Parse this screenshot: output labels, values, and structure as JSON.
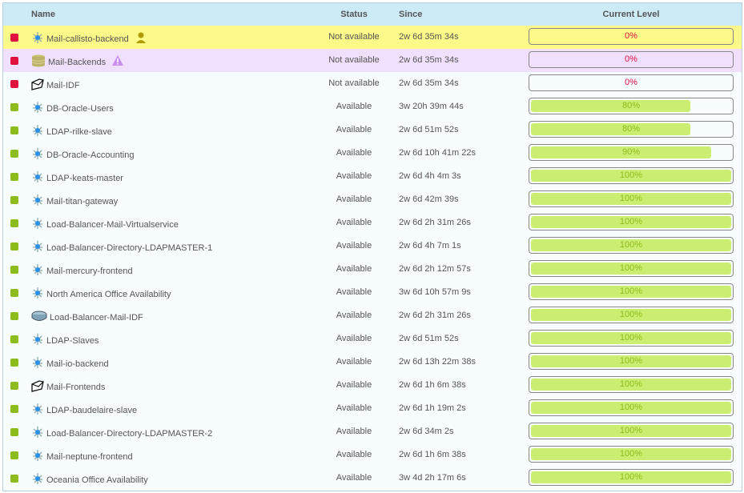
{
  "columns": {
    "name": "Name",
    "status": "Status",
    "since": "Since",
    "level": "Current Level"
  },
  "colors": {
    "down": "#e0103f",
    "up": "#8dbb1b",
    "bar_fill": "#cbee72",
    "pct_down": "#e0103f",
    "pct_up": "#8dbb1b"
  },
  "rows": [
    {
      "name": "Mail-callisto-backend",
      "icon": "service-icon",
      "badge": "user-icon",
      "status": "Not available",
      "since": "2w 6d 35m 34s",
      "level": 0,
      "level_label": "0%",
      "state": "down",
      "highlight": "yellow"
    },
    {
      "name": "Mail-Backends",
      "icon": "database-icon",
      "badge": "warning-icon",
      "status": "Not available",
      "since": "2w 6d 35m 34s",
      "level": 0,
      "level_label": "0%",
      "state": "down",
      "highlight": "purple"
    },
    {
      "name": "Mail-IDF",
      "icon": "envelope-icon",
      "status": "Not available",
      "since": "2w 6d 35m 34s",
      "level": 0,
      "level_label": "0%",
      "state": "down"
    },
    {
      "name": "DB-Oracle-Users",
      "icon": "service-icon",
      "status": "Available",
      "since": "3w 20h 39m 44s",
      "level": 80,
      "level_label": "80%",
      "state": "up"
    },
    {
      "name": "LDAP-rilke-slave",
      "icon": "service-icon",
      "status": "Available",
      "since": "2w 6d 51m 52s",
      "level": 80,
      "level_label": "80%",
      "state": "up"
    },
    {
      "name": "DB-Oracle-Accounting",
      "icon": "service-icon",
      "status": "Available",
      "since": "2w 6d 10h 41m 22s",
      "level": 90,
      "level_label": "90%",
      "state": "up"
    },
    {
      "name": "LDAP-keats-master",
      "icon": "service-icon",
      "status": "Available",
      "since": "2w 6d 4h 4m 3s",
      "level": 100,
      "level_label": "100%",
      "state": "up"
    },
    {
      "name": "Mail-titan-gateway",
      "icon": "service-icon",
      "status": "Available",
      "since": "2w 6d 42m 39s",
      "level": 100,
      "level_label": "100%",
      "state": "up"
    },
    {
      "name": "Load-Balancer-Mail-Virtualservice",
      "icon": "service-icon",
      "status": "Available",
      "since": "2w 6d 2h 31m 26s",
      "level": 100,
      "level_label": "100%",
      "state": "up"
    },
    {
      "name": "Load-Balancer-Directory-LDAPMASTER-1",
      "icon": "service-icon",
      "status": "Available",
      "since": "2w 6d 4h 7m 1s",
      "level": 100,
      "level_label": "100%",
      "state": "up"
    },
    {
      "name": "Mail-mercury-frontend",
      "icon": "service-icon",
      "status": "Available",
      "since": "2w 6d 2h 12m 57s",
      "level": 100,
      "level_label": "100%",
      "state": "up"
    },
    {
      "name": "North America Office Availability",
      "icon": "service-icon",
      "status": "Available",
      "since": "3w 6d 10h 57m 9s",
      "level": 100,
      "level_label": "100%",
      "state": "up"
    },
    {
      "name": "Load-Balancer-Mail-IDF",
      "icon": "router-icon",
      "status": "Available",
      "since": "2w 6d 2h 31m 26s",
      "level": 100,
      "level_label": "100%",
      "state": "up"
    },
    {
      "name": "LDAP-Slaves",
      "icon": "service-icon",
      "status": "Available",
      "since": "2w 6d 51m 52s",
      "level": 100,
      "level_label": "100%",
      "state": "up"
    },
    {
      "name": "Mail-io-backend",
      "icon": "service-icon",
      "status": "Available",
      "since": "2w 6d 13h 22m 38s",
      "level": 100,
      "level_label": "100%",
      "state": "up"
    },
    {
      "name": "Mail-Frontends",
      "icon": "envelope-icon",
      "status": "Available",
      "since": "2w 6d 1h 6m 38s",
      "level": 100,
      "level_label": "100%",
      "state": "up"
    },
    {
      "name": "LDAP-baudelaire-slave",
      "icon": "service-icon",
      "status": "Available",
      "since": "2w 6d 1h 19m 2s",
      "level": 100,
      "level_label": "100%",
      "state": "up"
    },
    {
      "name": "Load-Balancer-Directory-LDAPMASTER-2",
      "icon": "service-icon",
      "status": "Available",
      "since": "2w 6d 34m 2s",
      "level": 100,
      "level_label": "100%",
      "state": "up"
    },
    {
      "name": "Mail-neptune-frontend",
      "icon": "service-icon",
      "status": "Available",
      "since": "2w 6d 1h 6m 38s",
      "level": 100,
      "level_label": "100%",
      "state": "up"
    },
    {
      "name": "Oceania Office Availability",
      "icon": "service-icon",
      "status": "Available",
      "since": "3w 4d 2h 17m 6s",
      "level": 100,
      "level_label": "100%",
      "state": "up"
    }
  ]
}
